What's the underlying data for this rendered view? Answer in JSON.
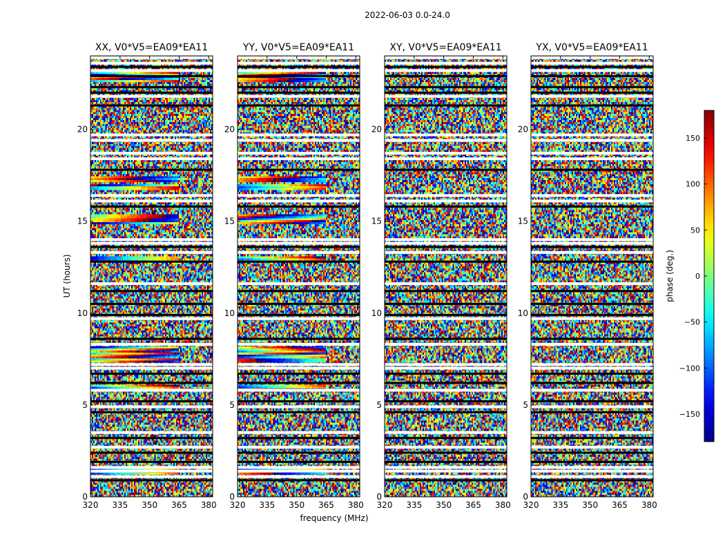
{
  "chart_data": {
    "type": "heatmap",
    "suptitle": "2022-06-03 0.0-24.0",
    "xlabel": "frequency (MHz)",
    "ylabel": "UT (hours)",
    "xlim": [
      320,
      382
    ],
    "ylim": [
      0,
      24
    ],
    "x_ticks": [
      320,
      335,
      350,
      365,
      380
    ],
    "y_ticks": [
      0,
      5,
      10,
      15,
      20
    ],
    "panels": [
      {
        "title": "XX, V0*V5=EA09*EA11",
        "pol": "XX"
      },
      {
        "title": "YY, V0*V5=EA09*EA11",
        "pol": "YY"
      },
      {
        "title": "XY, V0*V5=EA09*EA11",
        "pol": "XY"
      },
      {
        "title": "YX, V0*V5=EA09*EA11",
        "pol": "YX"
      }
    ],
    "colorbar": {
      "label": "phase (deg.)",
      "range": [
        -180,
        180
      ],
      "ticks": [
        -150,
        -100,
        -50,
        0,
        50,
        100,
        150
      ],
      "tick_labels": [
        "−150",
        "−100",
        "−50",
        "0",
        "50",
        "100",
        "150"
      ],
      "colormap": "jet"
    },
    "flagged_white_rows_hours": [
      1.1,
      1.4,
      1.6,
      2.7,
      3.5,
      4.9,
      5.8,
      7.0,
      7.2,
      8.3,
      9.7,
      11.6,
      13.3,
      13.8,
      14.0,
      16.1,
      16.4,
      18.4,
      18.7,
      19.4,
      19.7,
      21.8,
      23.2,
      23.6,
      23.9
    ],
    "flagged_black_rows_hours": [
      0.9,
      1.9,
      2.4,
      3.2,
      4.6,
      5.2,
      6.2,
      6.7,
      8.6,
      9.9,
      10.5,
      11.2,
      12.8,
      13.6,
      15.8,
      17.8,
      21.3,
      22.0,
      22.3,
      22.9,
      23.4
    ],
    "coherent_rows_hours": [
      1.3,
      5.9,
      7.5,
      7.7,
      7.9,
      8.0,
      12.9,
      15.0,
      15.2,
      16.9,
      17.3,
      22.8,
      23.0
    ]
  }
}
